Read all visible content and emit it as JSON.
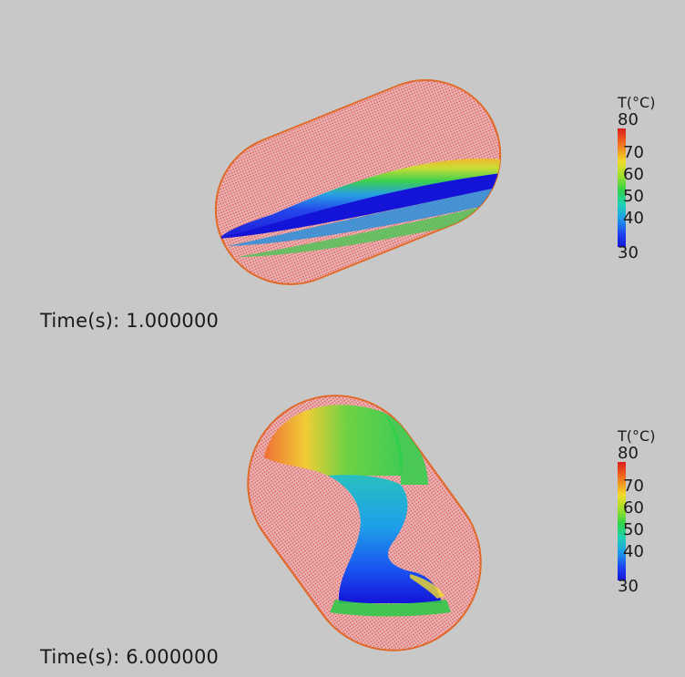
{
  "panels": [
    {
      "time_label": "Time(s): 1.000000",
      "colorbar": {
        "title": "T(°C)",
        "ticks": [
          "80",
          "70",
          "60",
          "50",
          "40",
          "30"
        ],
        "min": 30,
        "max": 80
      }
    },
    {
      "time_label": "Time(s): 6.000000",
      "colorbar": {
        "title": "T(°C)",
        "ticks": [
          "80",
          "70",
          "60",
          "50",
          "40",
          "30"
        ],
        "min": 30,
        "max": 80
      }
    }
  ],
  "colors": {
    "background": "#c8c8c8",
    "hot": "#e04a4a",
    "warm": "#f2dc2a",
    "mid": "#32d24a",
    "cool": "#1ea0e8",
    "cold": "#1414d8"
  }
}
